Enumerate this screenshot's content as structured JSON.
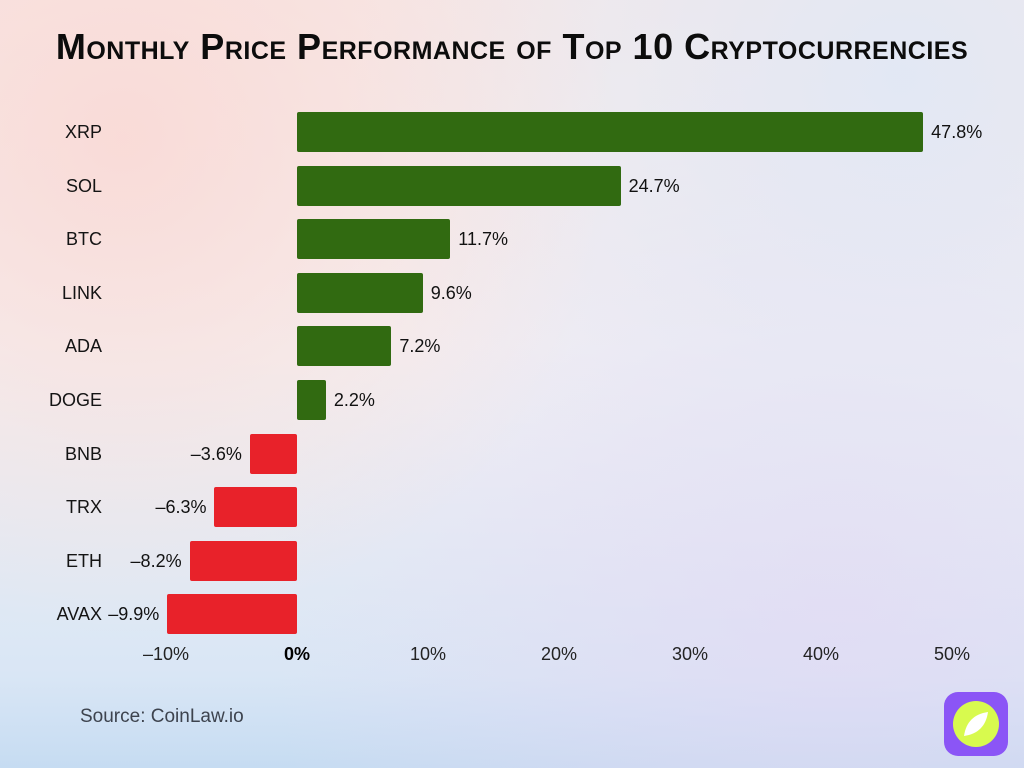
{
  "title": "Monthly Price Performance of Top 10 Cryptocurrencies",
  "source_text": "Source: CoinLaw.io",
  "colors": {
    "positive": "#316a11",
    "negative": "#e8222a",
    "title": "#0c0c0c",
    "axis_text": "#232323"
  },
  "logo": {
    "name": "coinlaw-logo",
    "bg": "#8b55f6",
    "circle": "#d8fa4e",
    "leaf": "#ffffff"
  },
  "chart_data": {
    "type": "bar",
    "orientation": "horizontal",
    "title": "Monthly Price Performance of Top 10 Cryptocurrencies",
    "categories": [
      "XRP",
      "SOL",
      "BTC",
      "LINK",
      "ADA",
      "DOGE",
      "BNB",
      "TRX",
      "ETH",
      "AVAX"
    ],
    "values": [
      47.8,
      24.7,
      11.7,
      9.6,
      7.2,
      2.2,
      -3.6,
      -6.3,
      -8.2,
      -9.9
    ],
    "value_labels": [
      "47.8%",
      "24.7%",
      "11.7%",
      "9.6%",
      "7.2%",
      "2.2%",
      "–3.6%",
      "–6.3%",
      "–8.2%",
      "–9.9%"
    ],
    "xlim": [
      -10,
      50
    ],
    "x_ticks": [
      -10,
      0,
      10,
      20,
      30,
      40,
      50
    ],
    "x_tick_labels": [
      "–10%",
      "0%",
      "10%",
      "20%",
      "30%",
      "40%",
      "50%"
    ],
    "xlabel": "",
    "ylabel": "",
    "grid": false,
    "legend": false
  }
}
